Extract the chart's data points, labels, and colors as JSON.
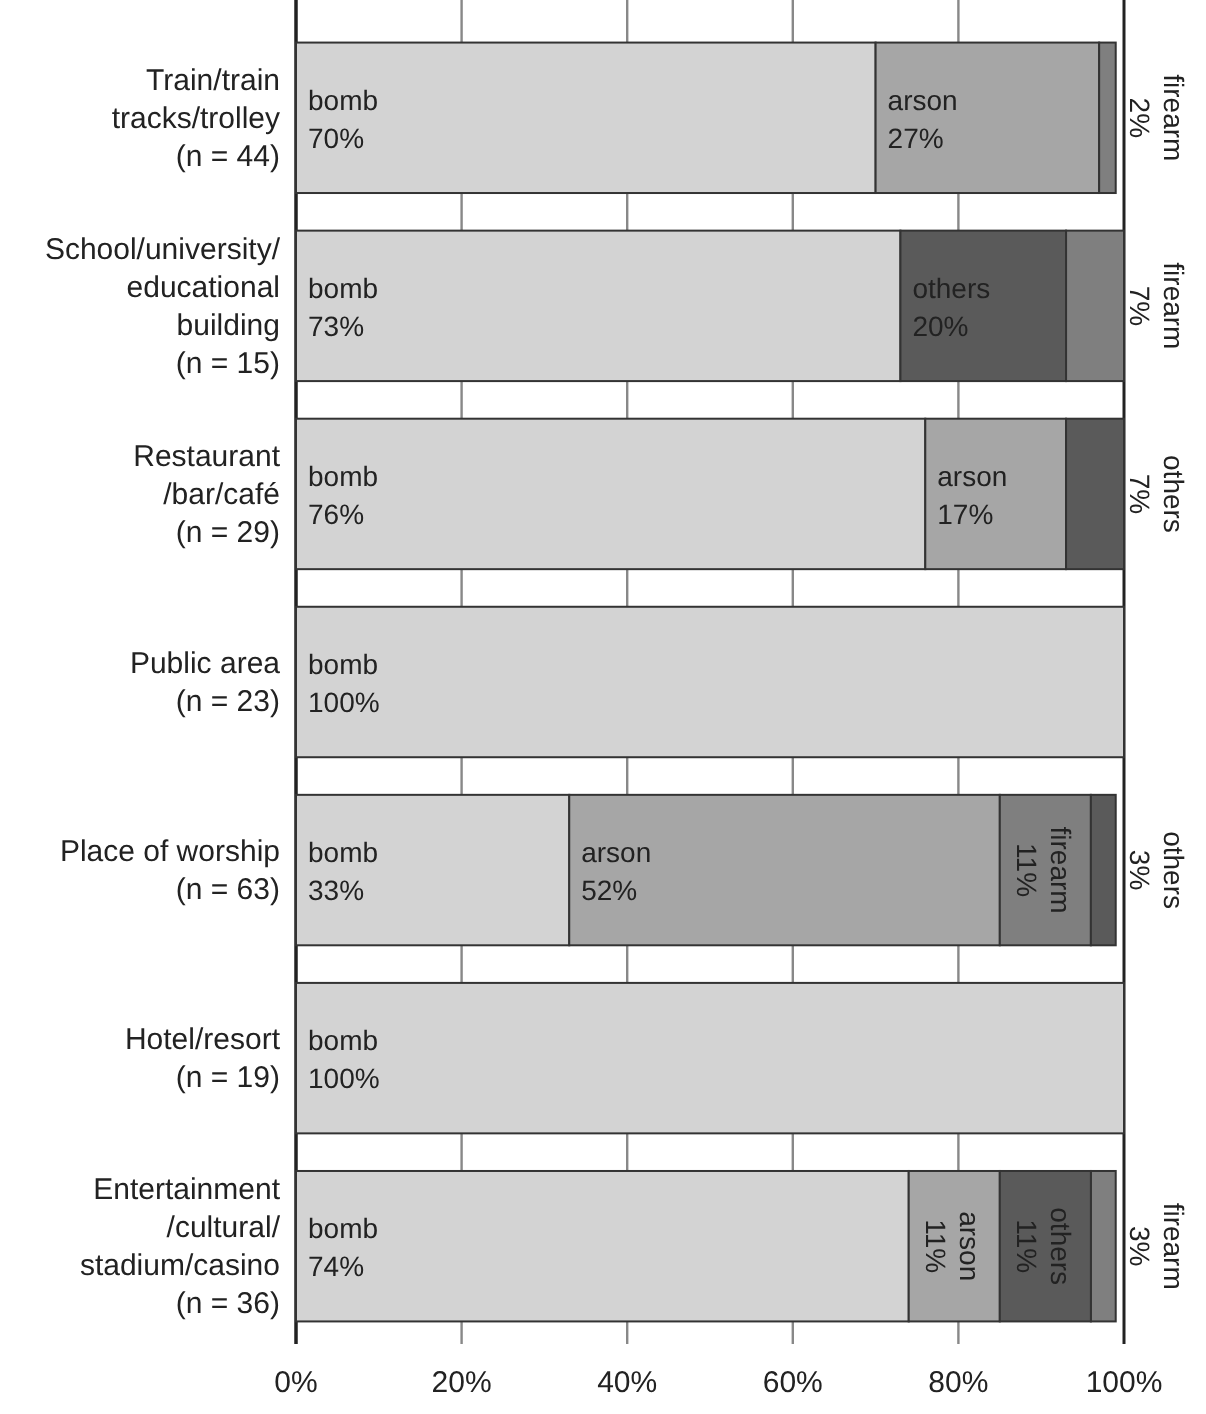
{
  "chart_data": {
    "type": "bar",
    "orientation": "horizontal",
    "categories": [
      "Train/train\ntracks/trolley\n(n = 44)",
      "School/university/\neducational\nbuilding\n(n = 15)",
      "Restaurant\n/bar/café\n(n = 29)",
      "Public area\n(n = 23)",
      "Place of worship\n(n = 63)",
      "Hotel/resort\n(n = 19)",
      "Entertainment\n/cultural/\nstadium/casino\n(n = 36)"
    ],
    "series": [
      {
        "name": "bomb",
        "color": "#d3d3d3",
        "values": [
          70,
          73,
          76,
          100,
          33,
          100,
          74
        ],
        "base": [
          0,
          0,
          0,
          0,
          0,
          0,
          0
        ],
        "value_labels": [
          "70%",
          "73%",
          "76%",
          "100%",
          "33%",
          "100%",
          "74%"
        ]
      },
      {
        "name": "arson",
        "color": "#a6a6a6",
        "values": [
          27,
          null,
          17,
          null,
          52,
          null,
          11
        ],
        "base": [
          70,
          null,
          76,
          null,
          33,
          null,
          74
        ],
        "value_labels": [
          "27%",
          null,
          "17%",
          null,
          "52%",
          null,
          "11%"
        ]
      },
      {
        "name": "firearm",
        "color": "#7f7f7f",
        "values": [
          2,
          7,
          null,
          null,
          11,
          null,
          3
        ],
        "base": [
          97,
          93,
          null,
          null,
          85,
          null,
          96
        ],
        "value_labels": [
          "2%",
          "7%",
          null,
          null,
          "11%",
          null,
          "3%"
        ]
      },
      {
        "name": "others",
        "color": "#5a5a5a",
        "values": [
          null,
          20,
          7,
          null,
          3,
          null,
          11
        ],
        "base": [
          null,
          73,
          93,
          null,
          96,
          null,
          85
        ],
        "value_labels": [
          null,
          "20%",
          "7%",
          null,
          "3%",
          null,
          "11%"
        ]
      }
    ],
    "xlim": [
      0,
      100
    ],
    "xticks": [
      {
        "value": 0,
        "label": "0%"
      },
      {
        "value": 20,
        "label": "20%"
      },
      {
        "value": 40,
        "label": "40%"
      },
      {
        "value": 60,
        "label": "60%"
      },
      {
        "value": 80,
        "label": "80%"
      },
      {
        "value": 100,
        "label": "100%"
      }
    ],
    "grid": "x"
  }
}
